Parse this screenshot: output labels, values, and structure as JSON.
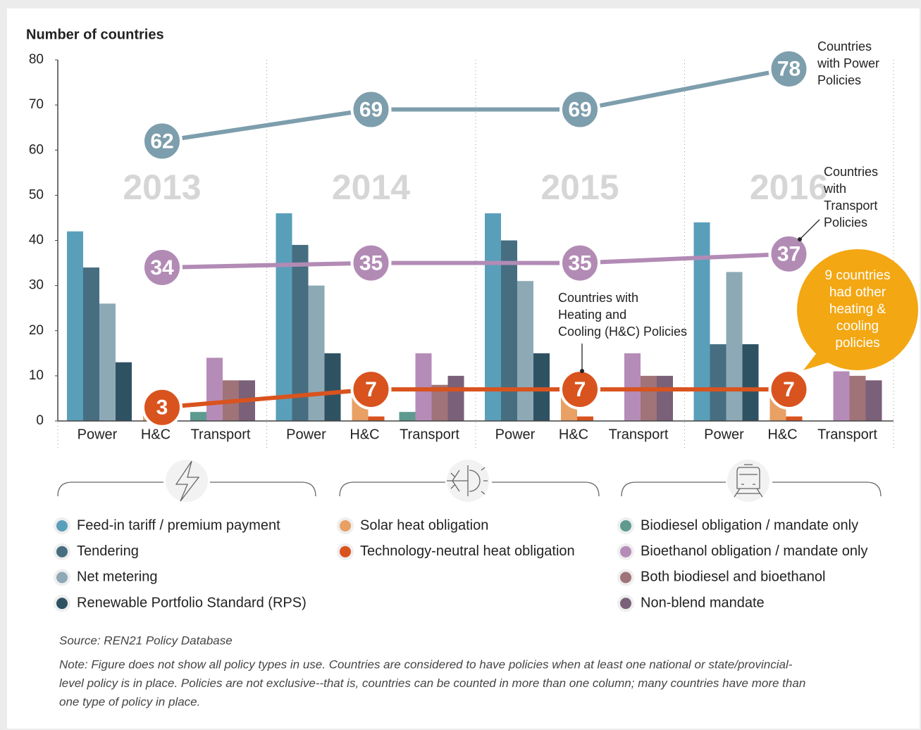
{
  "chart_data": {
    "type": "bar",
    "y_label": "Number of countries",
    "ylim": [
      0,
      80
    ],
    "yticks": [
      0,
      10,
      20,
      30,
      40,
      50,
      60,
      70,
      80
    ],
    "years": [
      "2013",
      "2014",
      "2015",
      "2016"
    ],
    "groups": [
      "Power",
      "H&C",
      "Transport"
    ],
    "series": [
      {
        "name": "Feed-in tariff / premium payment",
        "group": "Power",
        "color": "#5a9fba",
        "values": [
          42,
          46,
          46,
          44
        ]
      },
      {
        "name": "Tendering",
        "group": "Power",
        "color": "#466e80",
        "values": [
          34,
          39,
          40,
          17
        ]
      },
      {
        "name": "Net metering",
        "group": "Power",
        "color": "#8ea9b6",
        "values": [
          26,
          30,
          31,
          33
        ]
      },
      {
        "name": "Renewable Portfolio Standard (RPS)",
        "group": "Power",
        "color": "#2f5263",
        "values": [
          13,
          15,
          15,
          17
        ]
      },
      {
        "name": "Solar heat obligation",
        "group": "H&C",
        "color": "#e8a064",
        "values": [
          3,
          6,
          6,
          6
        ]
      },
      {
        "name": "Technology-neutral heat obligation",
        "group": "H&C",
        "color": "#d9531e",
        "values": [
          null,
          1,
          1,
          1
        ]
      },
      {
        "name": "Biodiesel obligation / mandate only",
        "group": "Transport",
        "color": "#5e9a90",
        "values": [
          2,
          2,
          0,
          0
        ]
      },
      {
        "name": "Bioethanol obligation / mandate only",
        "group": "Transport",
        "color": "#b58cb8",
        "values": [
          14,
          15,
          15,
          11
        ]
      },
      {
        "name": "Both biodiesel and bioethanol",
        "group": "Transport",
        "color": "#a07378",
        "values": [
          9,
          8,
          10,
          10
        ]
      },
      {
        "name": "Non-blend mandate",
        "group": "Transport",
        "color": "#7a6078",
        "values": [
          9,
          10,
          10,
          9
        ]
      }
    ],
    "lines": [
      {
        "label": [
          "Countries",
          "with Power",
          "Policies"
        ],
        "color": "#7d9eac",
        "values": [
          62,
          69,
          69,
          78
        ]
      },
      {
        "label": [
          "Countries",
          "with",
          "Transport",
          "Policies"
        ],
        "color": "#b28bb5",
        "values": [
          34,
          35,
          35,
          37
        ]
      },
      {
        "label": [
          "Countries with",
          "Heating and",
          "Cooling (H&C) Policies"
        ],
        "color": "#d9531e",
        "values": [
          3,
          7,
          7,
          7
        ]
      }
    ],
    "callout": [
      "9 countries",
      "had other",
      "heating &",
      "cooling",
      "policies"
    ],
    "source": "Source: REN21 Policy Database",
    "note": [
      "Note: Figure does not show all policy types in use. Countries are considered to have policies when at least one national or state/provincial-",
      "level policy is in place. Policies are not exclusive--that is, countries can be counted in more than one column; many countries have more than",
      "one type of policy in place."
    ]
  }
}
